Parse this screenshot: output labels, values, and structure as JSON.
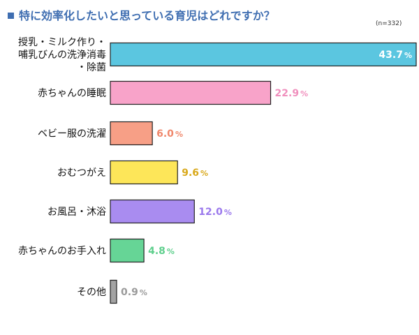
{
  "chart_data": {
    "type": "bar",
    "orientation": "horizontal",
    "title": "特に効率化したいと思っている育児はどれですか？",
    "sample_size": "(n=332)",
    "unit": "%",
    "categories": [
      [
        "授乳・ミルク作り・",
        "哺乳びんの洗浄消毒",
        "・除菌"
      ],
      [
        "赤ちゃんの睡眠"
      ],
      [
        "ベビー服の洗濯"
      ],
      [
        "おむつがえ"
      ],
      [
        "お風呂・沐浴"
      ],
      [
        "赤ちゃんのお手入れ"
      ],
      [
        "その他"
      ]
    ],
    "values": [
      43.7,
      22.9,
      6.0,
      9.6,
      12.0,
      4.8,
      0.9
    ],
    "value_labels": [
      "43.7",
      "22.9",
      "6.0",
      "9.6",
      "12.0",
      "4.8",
      "0.9"
    ],
    "bar_colors": [
      "#5bc6e0",
      "#f8a3c9",
      "#f79f86",
      "#fde659",
      "#a98cf0",
      "#66d596",
      "#a3a3a3"
    ],
    "label_colors": [
      "#ffffff",
      "#f08fbd",
      "#f0876b",
      "#d9a91c",
      "#9a78ec",
      "#5fcf8d",
      "#9a9a9a"
    ],
    "xlim": [
      0,
      43.7
    ],
    "grid": false,
    "legend": "none"
  },
  "colors": {
    "title_marker": "#3f6eb1",
    "bar_outline": "#222222"
  }
}
